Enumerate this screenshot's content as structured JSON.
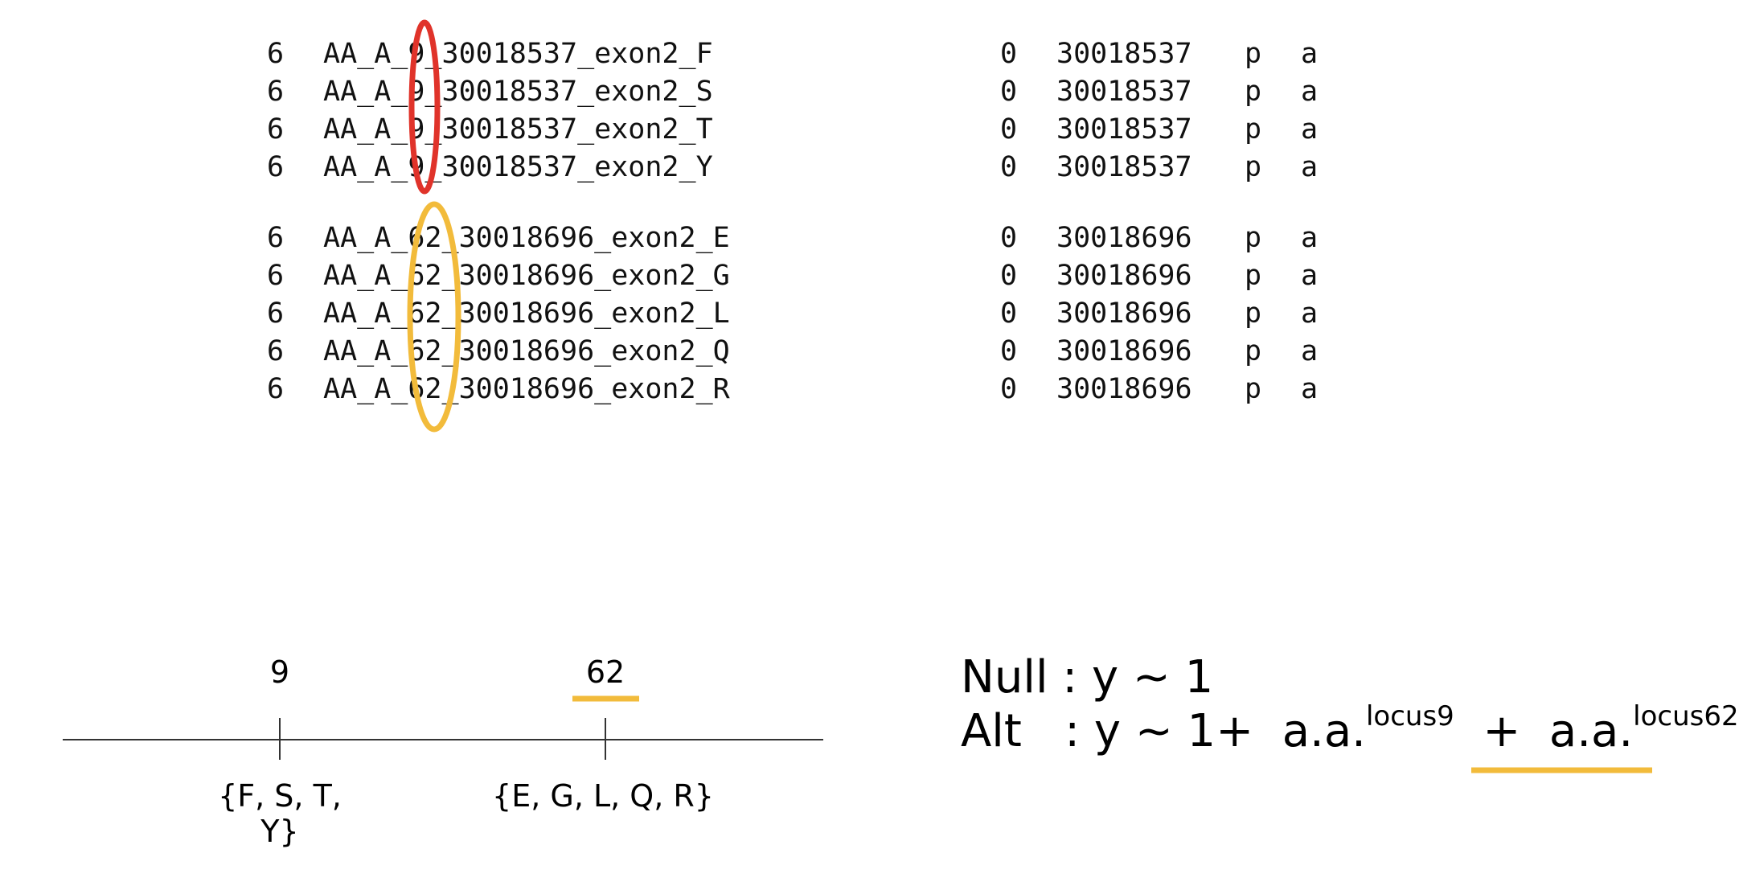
{
  "table": {
    "group1": [
      {
        "chrom": "6",
        "name": "AA_A_9_30018537_exon2_F",
        "cm": "0",
        "pos": "30018537",
        "a1": "p",
        "a2": "a"
      },
      {
        "chrom": "6",
        "name": "AA_A_9_30018537_exon2_S",
        "cm": "0",
        "pos": "30018537",
        "a1": "p",
        "a2": "a"
      },
      {
        "chrom": "6",
        "name": "AA_A_9_30018537_exon2_T",
        "cm": "0",
        "pos": "30018537",
        "a1": "p",
        "a2": "a"
      },
      {
        "chrom": "6",
        "name": "AA_A_9_30018537_exon2_Y",
        "cm": "0",
        "pos": "30018537",
        "a1": "p",
        "a2": "a"
      }
    ],
    "group2": [
      {
        "chrom": "6",
        "name": "AA_A_62_30018696_exon2_E",
        "cm": "0",
        "pos": "30018696",
        "a1": "p",
        "a2": "a"
      },
      {
        "chrom": "6",
        "name": "AA_A_62_30018696_exon2_G",
        "cm": "0",
        "pos": "30018696",
        "a1": "p",
        "a2": "a"
      },
      {
        "chrom": "6",
        "name": "AA_A_62_30018696_exon2_L",
        "cm": "0",
        "pos": "30018696",
        "a1": "p",
        "a2": "a"
      },
      {
        "chrom": "6",
        "name": "AA_A_62_30018696_exon2_Q",
        "cm": "0",
        "pos": "30018696",
        "a1": "p",
        "a2": "a"
      },
      {
        "chrom": "6",
        "name": "AA_A_62_30018696_exon2_R",
        "cm": "0",
        "pos": "30018696",
        "a1": "p",
        "a2": "a"
      }
    ]
  },
  "axis": {
    "locus1_label": "9",
    "locus2_label": "62",
    "locus1_alleles": "{F, S, T, Y}",
    "locus2_alleles": "{E, G, L, Q, R}"
  },
  "model": {
    "null_text": "Null : y ~ 1",
    "alt_prefix": "Alt   : y ~ 1+  a.a.",
    "alt_sup1": "locus9",
    "alt_mid": "  +  ",
    "alt_term2": "a.a.",
    "alt_sup2": "locus62"
  },
  "colors": {
    "red_ellipse": "#e0332a",
    "yellow_highlight": "#f2bb3b",
    "axis_line": "#333333"
  }
}
